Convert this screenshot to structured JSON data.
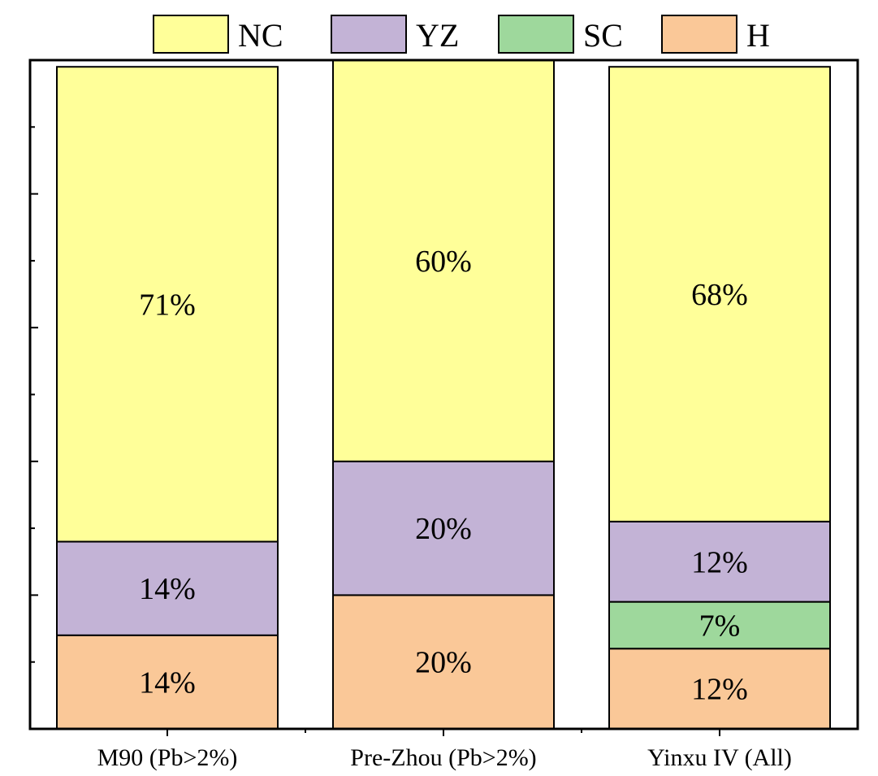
{
  "chart_data": {
    "type": "bar",
    "stacked": true,
    "title": "",
    "xlabel": "",
    "ylabel": "",
    "ylim": [
      0,
      100
    ],
    "grid": false,
    "legend_position": "top",
    "categories": [
      "M90 (Pb>2%)",
      "Pre-Zhou (Pb>2%)",
      "Yinxu IV (All)"
    ],
    "series": [
      {
        "name": "H",
        "color": "#FAC898",
        "values": [
          14,
          20,
          12
        ],
        "labels": [
          "14%",
          "20%",
          "12%"
        ]
      },
      {
        "name": "SC",
        "color": "#9ED89C",
        "values": [
          0,
          0,
          7
        ],
        "labels": [
          "",
          "",
          "7%"
        ]
      },
      {
        "name": "YZ",
        "color": "#C3B3D6",
        "values": [
          14,
          20,
          12
        ],
        "labels": [
          "14%",
          "20%",
          "12%"
        ]
      },
      {
        "name": "NC",
        "color": "#FFFF99",
        "values": [
          71,
          60,
          68
        ],
        "labels": [
          "71%",
          "60%",
          "68%"
        ]
      }
    ],
    "legend_order": [
      "NC",
      "YZ",
      "SC",
      "H"
    ]
  }
}
